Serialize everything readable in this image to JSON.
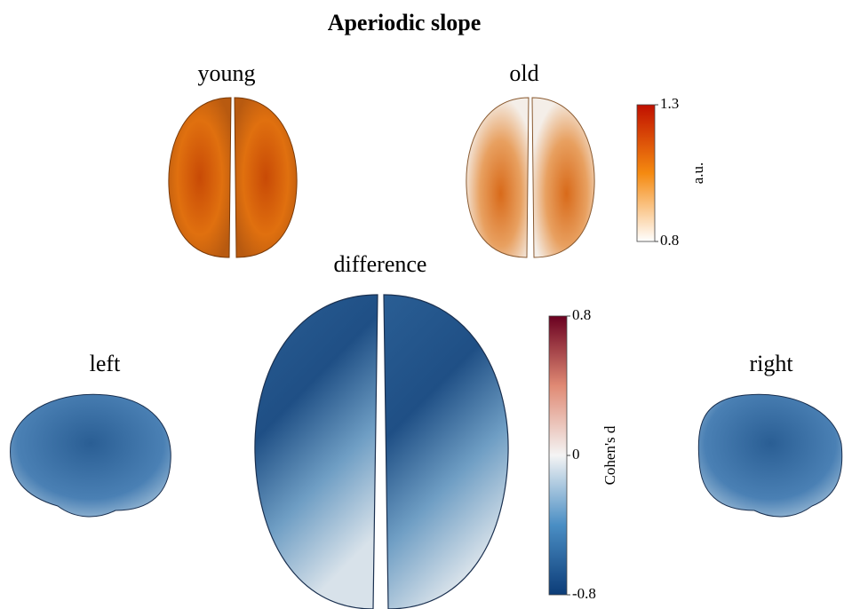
{
  "title": "Aperiodic slope",
  "panels": {
    "young": "young",
    "old": "old",
    "difference": "difference",
    "left": "left",
    "right": "right"
  },
  "colorbars": [
    {
      "label": "a.u.",
      "ticks": [
        1.3,
        0.8
      ]
    },
    {
      "label": "Cohen's d",
      "ticks": [
        0.8,
        0,
        -0.8
      ]
    }
  ]
}
